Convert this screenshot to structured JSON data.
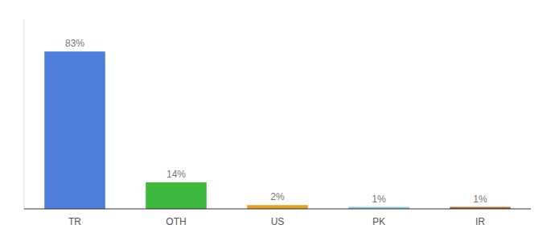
{
  "chart_data": {
    "type": "bar",
    "categories": [
      "TR",
      "OTH",
      "US",
      "PK",
      "IR"
    ],
    "values": [
      83,
      14,
      2,
      1,
      1
    ],
    "value_labels": [
      "83%",
      "14%",
      "2%",
      "1%",
      "1%"
    ],
    "colors": [
      "#4d7edb",
      "#3dba3d",
      "#e6a020",
      "#7ec8e3",
      "#c05a2a"
    ],
    "ylim": [
      0,
      100
    ],
    "data_labels": true,
    "tick_labels": "x"
  }
}
